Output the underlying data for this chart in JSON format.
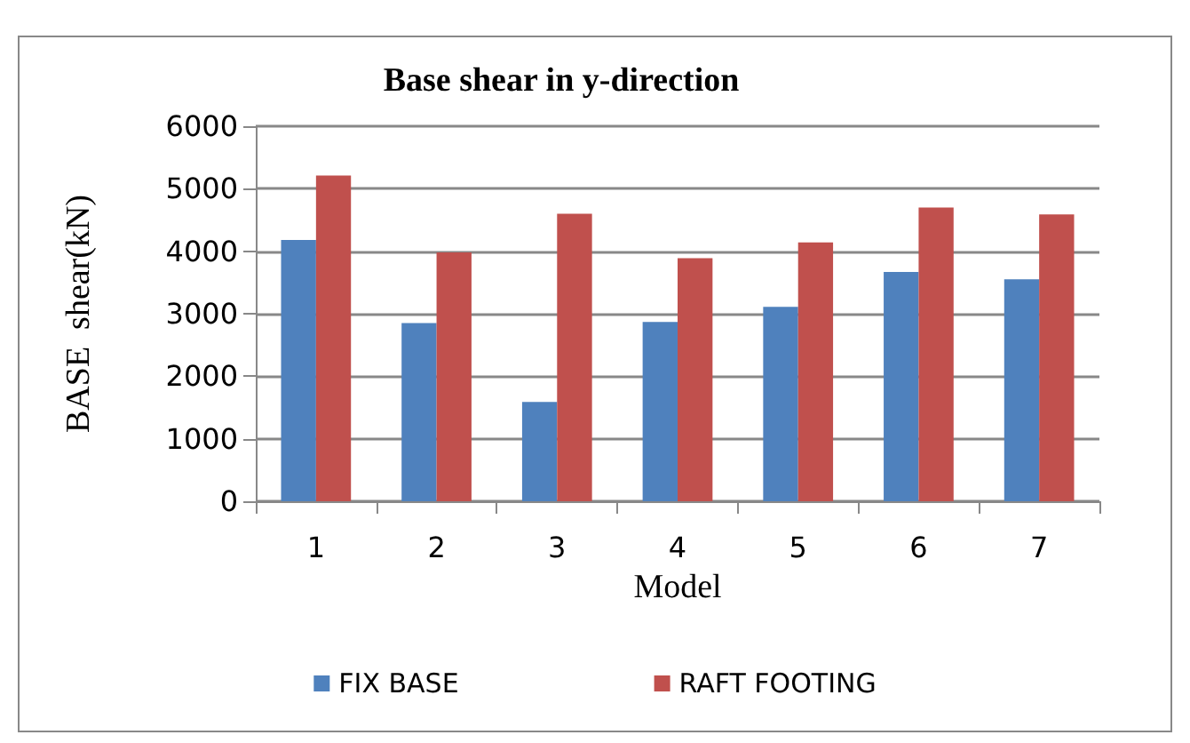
{
  "chart_data": {
    "type": "bar",
    "title": "Base shear in y-direction",
    "xlabel": "Model",
    "ylabel": "BASE  shear(kN)",
    "categories": [
      "1",
      "2",
      "3",
      "4",
      "5",
      "6",
      "7"
    ],
    "series": [
      {
        "name": "FIX BASE",
        "color": "#4f81bd",
        "values": [
          4180,
          2850,
          1590,
          2870,
          3110,
          3670,
          3550
        ]
      },
      {
        "name": "RAFT FOOTING",
        "color": "#c0504d",
        "values": [
          5210,
          3980,
          4600,
          3890,
          4140,
          4700,
          4590
        ]
      }
    ],
    "ylim": [
      0,
      6000
    ],
    "yticks": [
      0,
      1000,
      2000,
      3000,
      4000,
      5000,
      6000
    ],
    "grid": "y",
    "legend": "bottom"
  }
}
